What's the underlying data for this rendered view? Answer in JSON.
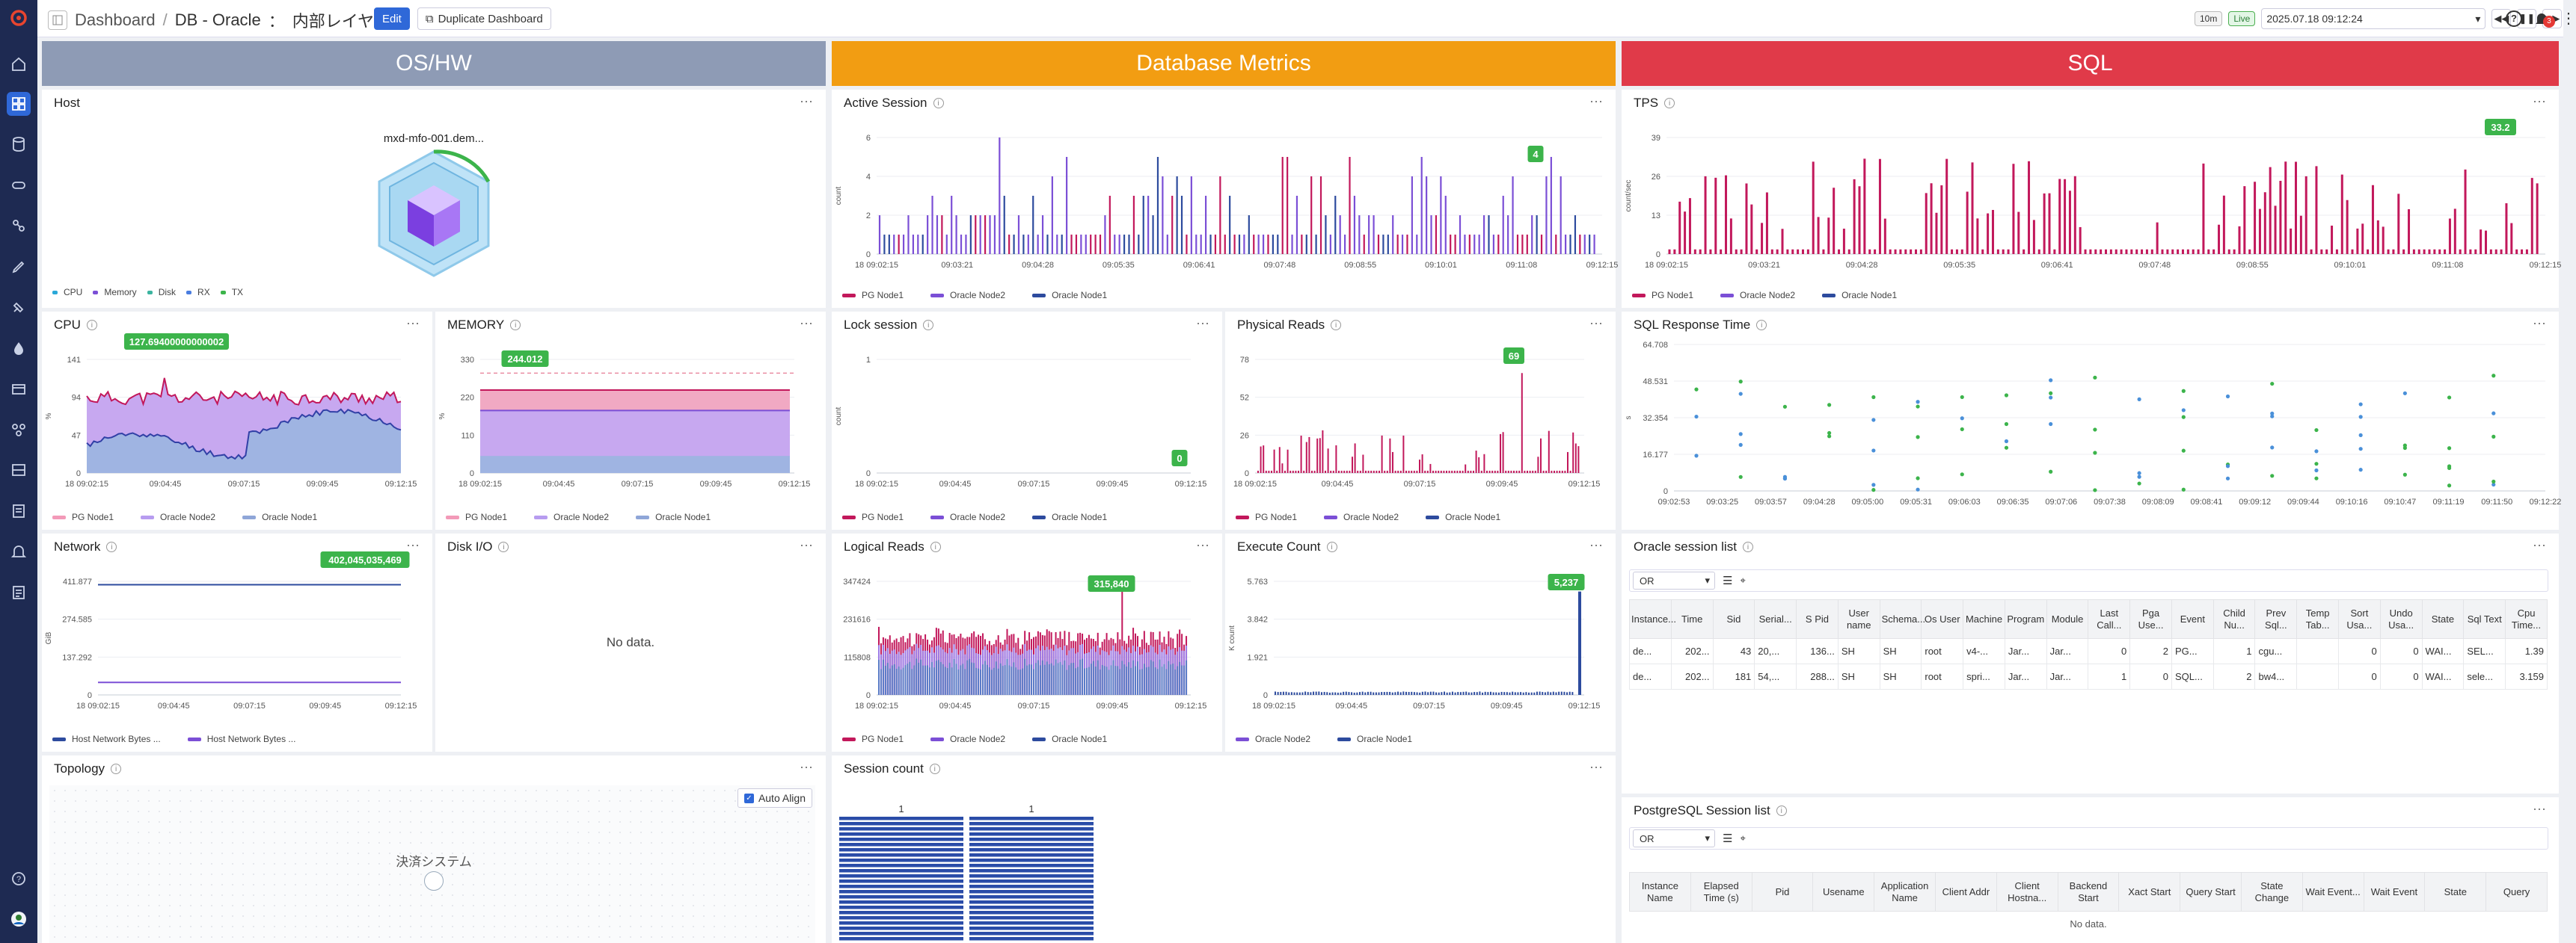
{
  "header": {
    "breadcrumb_root": "Dashboard",
    "breadcrumb_sep": "/",
    "title": "DB - Oracle",
    "title_sep": "：",
    "dashboard_name": "内部レイヤー",
    "edit_label": "Edit",
    "duplicate_label": "Duplicate Dashboard",
    "range_label": "10m",
    "live_label": "Live",
    "time_value": "2025.07.18 09:12:24",
    "alert_count": "3"
  },
  "banners": {
    "oshw": "OS/HW",
    "dbmetrics": "Database Metrics",
    "sql": "SQL"
  },
  "colors": {
    "oshw": "#8e9bb5",
    "dbmetrics": "#f29d12",
    "sql": "#e03a49",
    "pg": "#c2185b",
    "oracle2": "#7b4fd6",
    "oracle1": "#2d4b9e",
    "nav": "#1e2a52",
    "accent": "#2f68d8",
    "tag": "#3cb44b"
  },
  "host": {
    "title": "Host",
    "hostname": "mxd-mfo-001.dem...",
    "legend": [
      "CPU",
      "Memory",
      "Disk",
      "RX",
      "TX"
    ]
  },
  "active_session": {
    "title": "Active Session",
    "ylabel": "count",
    "yticks": [
      "6",
      "4",
      "2",
      "0"
    ],
    "xticks": [
      "18 09:02:15",
      "09:03:21",
      "09:04:28",
      "09:05:35",
      "09:06:41",
      "09:07:48",
      "09:08:55",
      "09:10:01",
      "09:11:08",
      "09:12:15"
    ],
    "tag": "4",
    "legend": [
      "PG Node1",
      "Oracle Node2",
      "Oracle Node1"
    ]
  },
  "tps": {
    "title": "TPS",
    "ylabel": "count/sec",
    "yticks": [
      "39",
      "26",
      "13",
      "0"
    ],
    "xticks": [
      "18 09:02:15",
      "09:03:21",
      "09:04:28",
      "09:05:35",
      "09:06:41",
      "09:07:48",
      "09:08:55",
      "09:10:01",
      "09:11:08",
      "09:12:15"
    ],
    "tag": "33.2",
    "legend": [
      "PG Node1",
      "Oracle Node2",
      "Oracle Node1"
    ]
  },
  "cpu": {
    "title": "CPU",
    "ylabel": "%",
    "yticks": [
      "141",
      "94",
      "47",
      "0"
    ],
    "xticks": [
      "18 09:02:15",
      "09:04:45",
      "09:07:15",
      "09:09:45",
      "09:12:15"
    ],
    "tag": "127.69400000000002",
    "legend": [
      "PG Node1",
      "Oracle Node2",
      "Oracle Node1"
    ]
  },
  "memory": {
    "title": "MEMORY",
    "ylabel": "%",
    "yticks": [
      "330",
      "220",
      "110",
      "0"
    ],
    "xticks": [
      "18 09:02:15",
      "09:04:45",
      "09:07:15",
      "09:09:45",
      "09:12:15"
    ],
    "tag": "244.012",
    "legend": [
      "PG Node1",
      "Oracle Node2",
      "Oracle Node1"
    ]
  },
  "lock_session": {
    "title": "Lock session",
    "ylabel": "count",
    "yticks": [
      "1",
      "0"
    ],
    "xticks": [
      "18 09:02:15",
      "09:04:45",
      "09:07:15",
      "09:09:45",
      "09:12:15"
    ],
    "tag": "0",
    "legend": [
      "PG Node1",
      "Oracle Node2",
      "Oracle Node1"
    ]
  },
  "physical_reads": {
    "title": "Physical Reads",
    "yticks": [
      "78",
      "52",
      "26",
      "0"
    ],
    "xticks": [
      "18 09:02:15",
      "09:04:45",
      "09:07:15",
      "09:09:45",
      "09:12:15"
    ],
    "tag": "69",
    "legend": [
      "PG Node1",
      "Oracle Node2",
      "Oracle Node1"
    ]
  },
  "sql_response": {
    "title": "SQL Response Time",
    "ylabel": "s",
    "yticks": [
      "64.708",
      "48.531",
      "32.354",
      "16.177",
      "0"
    ],
    "xticks": [
      "09:02:53",
      "09:03:25",
      "09:03:57",
      "09:04:28",
      "09:05:00",
      "09:05:31",
      "09:06:03",
      "09:06:35",
      "09:07:06",
      "09:07:38",
      "09:08:09",
      "09:08:41",
      "09:09:12",
      "09:09:44",
      "09:10:16",
      "09:10:47",
      "09:11:19",
      "09:11:50",
      "09:12:22"
    ]
  },
  "network": {
    "title": "Network",
    "ylabel": "GiB",
    "yticks": [
      "411.877",
      "274.585",
      "137.292",
      "0"
    ],
    "xticks": [
      "18 09:02:15",
      "09:04:45",
      "09:07:15",
      "09:09:45",
      "09:12:15"
    ],
    "tag": "402,045,035,469",
    "legend": [
      "Host Network Bytes ...",
      "Host Network Bytes ..."
    ]
  },
  "disk_io": {
    "title": "Disk I/O",
    "empty": "No data."
  },
  "logical_reads": {
    "title": "Logical Reads",
    "yticks": [
      "347424",
      "231616",
      "115808",
      "0"
    ],
    "xticks": [
      "18 09:02:15",
      "09:04:45",
      "09:07:15",
      "09:09:45",
      "09:12:15"
    ],
    "tag": "315,840",
    "legend": [
      "PG Node1",
      "Oracle Node2",
      "Oracle Node1"
    ]
  },
  "execute_count": {
    "title": "Execute Count",
    "ylabel": "K count",
    "yticks": [
      "5.763",
      "3.842",
      "1.921",
      "0"
    ],
    "xticks": [
      "18 09:02:15",
      "09:04:45",
      "09:07:15",
      "09:09:45",
      "09:12:15"
    ],
    "tag": "5,237",
    "legend": [
      "Oracle Node2",
      "Oracle Node1"
    ]
  },
  "oracle_session": {
    "title": "Oracle session list",
    "filter": "OR",
    "columns": [
      "Instance...",
      "Time",
      "Sid",
      "Serial...",
      "S Pid",
      "User name",
      "Schema...",
      "Os User",
      "Machine",
      "Program",
      "Module",
      "Last Call...",
      "Pga Use...",
      "Event",
      "Child Nu...",
      "Prev Sql...",
      "Temp Tab...",
      "Sort Usa...",
      "Undo Usa...",
      "State",
      "Sql Text",
      "Cpu Time..."
    ],
    "rows": [
      [
        "de...",
        "202...",
        "43",
        "20,...",
        "136...",
        "SH",
        "SH",
        "root",
        "v4-...",
        "Jar...",
        "Jar...",
        "0",
        "2",
        "PG...",
        "1",
        "cgu...",
        "",
        "0",
        "0",
        "WAI...",
        "SEL...",
        "1.39"
      ],
      [
        "de...",
        "202...",
        "181",
        "54,...",
        "288...",
        "SH",
        "SH",
        "root",
        "spri...",
        "Jar...",
        "Jar...",
        "1",
        "0",
        "SQL...",
        "2",
        "bw4...",
        "",
        "0",
        "0",
        "WAI...",
        "sele...",
        "3.159"
      ]
    ]
  },
  "topology": {
    "title": "Topology",
    "auto_align": "Auto Align",
    "node_label": "決済システム"
  },
  "session_count": {
    "title": "Session count",
    "bars": [
      "1",
      "1"
    ]
  },
  "pg_session": {
    "title": "PostgreSQL Session list",
    "filter": "OR",
    "columns": [
      "Instance Name",
      "Elapsed Time (s)",
      "Pid",
      "Usename",
      "Application Name",
      "Client Addr",
      "Client Hostna...",
      "Backend Start",
      "Xact Start",
      "Query Start",
      "State Change",
      "Wait Event...",
      "Wait Event",
      "State",
      "Query"
    ],
    "empty": "No data."
  }
}
